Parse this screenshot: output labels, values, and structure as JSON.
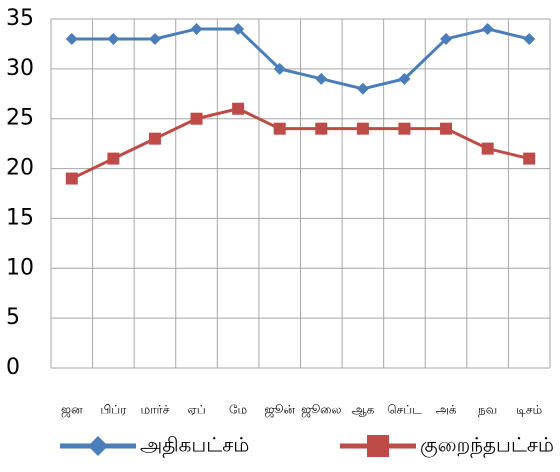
{
  "chart_data": {
    "type": "line",
    "categories": [
      "ஜன",
      "பிப்ர",
      "மார்ச்",
      "ஏப்",
      "மே",
      "ஜூன்",
      "ஜூலை",
      "ஆக",
      "செப்ட",
      "அக்",
      "நவ",
      "டிசம்"
    ],
    "series": [
      {
        "name": "அதிகபட்சம்",
        "color": "#4a7ebb",
        "marker": "diamond",
        "values": [
          33,
          33,
          33,
          34,
          34,
          30,
          29,
          28,
          29,
          33,
          34,
          33
        ]
      },
      {
        "name": "குறைந்தபட்சம்",
        "color": "#be4b48",
        "marker": "square",
        "values": [
          19,
          21,
          23,
          25,
          26,
          24,
          24,
          24,
          24,
          24,
          22,
          21
        ]
      }
    ],
    "ylim": [
      0,
      35
    ],
    "yticks": [
      0,
      5,
      10,
      15,
      20,
      25,
      30,
      35
    ],
    "grid": true,
    "legend": "bottom"
  }
}
